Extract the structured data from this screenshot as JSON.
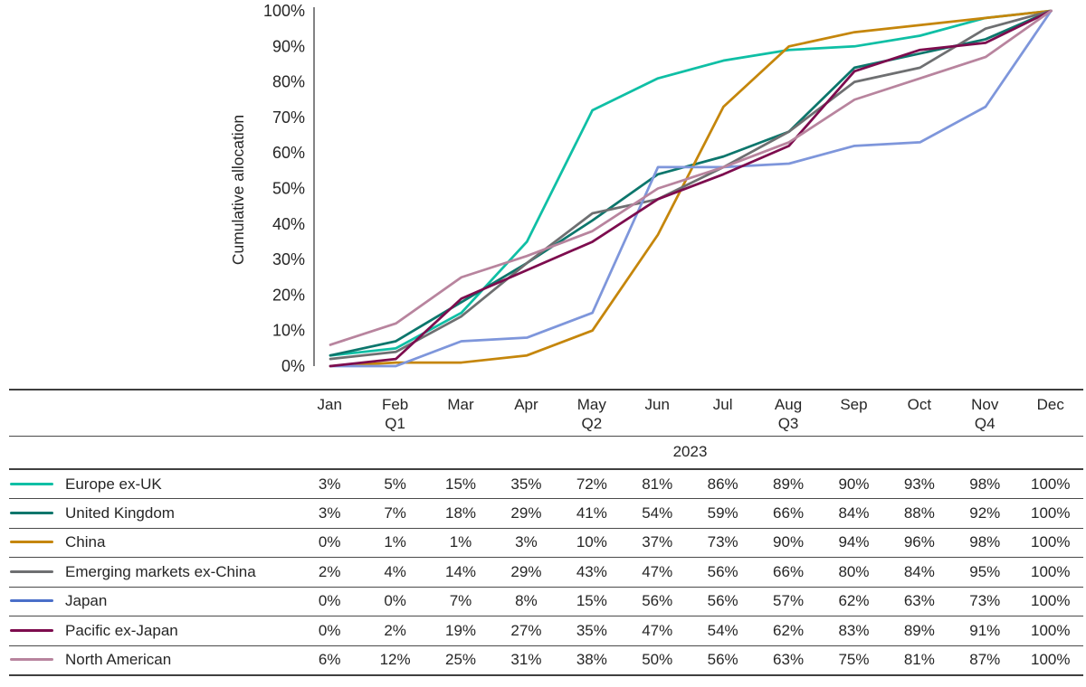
{
  "chart_data": {
    "type": "line",
    "title": "",
    "ylabel": "Cumulative allocation",
    "xlabel": "",
    "year": "2023",
    "x_categories": [
      "Jan",
      "Feb",
      "Mar",
      "Apr",
      "May",
      "Jun",
      "Jul",
      "Aug",
      "Sep",
      "Oct",
      "Nov",
      "Dec"
    ],
    "quarter_labels": [
      "",
      "Q1",
      "",
      "",
      "Q2",
      "",
      "",
      "Q3",
      "",
      "",
      "Q4",
      ""
    ],
    "yticks": [
      "0%",
      "10%",
      "20%",
      "30%",
      "40%",
      "50%",
      "60%",
      "70%",
      "80%",
      "90%",
      "100%"
    ],
    "ylim": [
      0,
      100
    ],
    "ytick_step": 10,
    "grid": false,
    "legend_position": "table-rows-left",
    "value_suffix": "%",
    "axis_color": "#58595B",
    "text_color": "#262626",
    "rule_color": "#4A4A4A",
    "series": [
      {
        "name": "Europe ex-UK",
        "color": "#0FBFA5",
        "values": [
          3,
          5,
          15,
          35,
          72,
          81,
          86,
          89,
          90,
          93,
          98,
          100
        ]
      },
      {
        "name": "United Kingdom",
        "color": "#0C766C",
        "values": [
          3,
          7,
          18,
          29,
          41,
          54,
          59,
          66,
          84,
          88,
          92,
          100
        ]
      },
      {
        "name": "China",
        "color": "#C5860B",
        "values": [
          0,
          1,
          1,
          3,
          10,
          37,
          73,
          90,
          94,
          96,
          98,
          100
        ]
      },
      {
        "name": "Emerging markets ex-China",
        "color": "#6E6F71",
        "values": [
          2,
          4,
          14,
          29,
          43,
          47,
          56,
          66,
          80,
          84,
          95,
          100
        ]
      },
      {
        "name": "Japan",
        "color": "#4A6FC9",
        "line_color": "#7E96DB",
        "values": [
          0,
          0,
          7,
          8,
          15,
          56,
          56,
          57,
          62,
          63,
          73,
          100
        ]
      },
      {
        "name": "Pacific ex-Japan",
        "color": "#7D0C4E",
        "values": [
          0,
          2,
          19,
          27,
          35,
          47,
          54,
          62,
          83,
          89,
          91,
          100
        ]
      },
      {
        "name": "North American",
        "color": "#B8849E",
        "values": [
          6,
          12,
          25,
          31,
          38,
          50,
          56,
          63,
          75,
          81,
          87,
          100
        ]
      }
    ]
  }
}
